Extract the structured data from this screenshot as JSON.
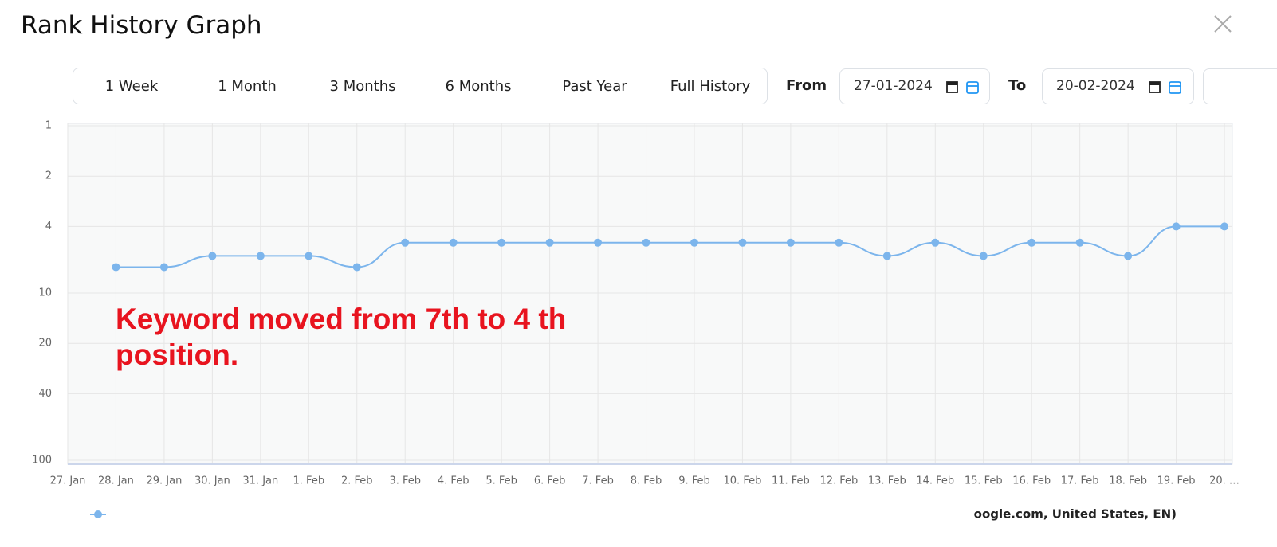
{
  "header": {
    "title": "Rank History Graph"
  },
  "toolbar": {
    "range_buttons": [
      "1 Week",
      "1 Month",
      "3 Months",
      "6 Months",
      "Past Year",
      "Full History"
    ],
    "from_label": "From",
    "from_date": "27-01-2024",
    "to_label": "To",
    "to_date": "20-02-2024"
  },
  "chart_data": {
    "type": "line",
    "annotation": "Keyword moved from 7th to 4 th position.",
    "categories": [
      "27. Jan",
      "28. Jan",
      "29. Jan",
      "30. Jan",
      "31. Jan",
      "1. Feb",
      "2. Feb",
      "3. Feb",
      "4. Feb",
      "5. Feb",
      "6. Feb",
      "7. Feb",
      "8. Feb",
      "9. Feb",
      "10. Feb",
      "11. Feb",
      "12. Feb",
      "13. Feb",
      "14. Feb",
      "15. Feb",
      "16. Feb",
      "17. Feb",
      "18. Feb",
      "19. Feb",
      "20. …"
    ],
    "series": [
      {
        "name": "oogle.com, United States, EN)",
        "color": "#7cb5ec",
        "values": [
          null,
          7,
          7,
          6,
          6,
          6,
          7,
          5,
          5,
          5,
          5,
          5,
          5,
          5,
          5,
          5,
          5,
          6,
          5,
          6,
          5,
          5,
          6,
          4,
          4
        ]
      }
    ],
    "ylim": [
      1,
      100
    ],
    "yticks": [
      1,
      2,
      4,
      10,
      20,
      40,
      100
    ],
    "log_scale": true,
    "reverse_y": true,
    "grid": true
  }
}
